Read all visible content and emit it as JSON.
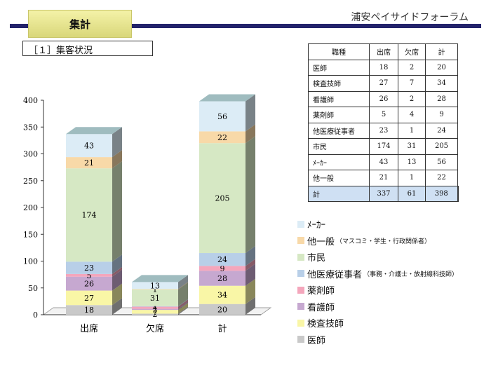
{
  "header": {
    "title": "集計",
    "brand": "浦安ペイサイドフォーラム"
  },
  "section": {
    "title": "［１］集客状況"
  },
  "table": {
    "headers": [
      "職種",
      "出席",
      "欠席",
      "計"
    ],
    "rows": [
      [
        "医師",
        "18",
        "2",
        "20"
      ],
      [
        "検査技師",
        "27",
        "7",
        "34"
      ],
      [
        "看護師",
        "26",
        "2",
        "28"
      ],
      [
        "薬剤師",
        "5",
        "4",
        "9"
      ],
      [
        "他医療従事者",
        "23",
        "1",
        "24"
      ],
      [
        "市民",
        "174",
        "31",
        "205"
      ],
      [
        "ﾒｰｶｰ",
        "43",
        "13",
        "56"
      ],
      [
        "他一般",
        "21",
        "1",
        "22"
      ],
      [
        "計",
        "337",
        "61",
        "398"
      ]
    ]
  },
  "legend": [
    {
      "label": "ﾒｰｶｰ",
      "sub": "",
      "color": "#dcecf6"
    },
    {
      "label": "他一般",
      "sub": "（マスコミ・学生・行政関係者）",
      "color": "#f8d9a8"
    },
    {
      "label": "市民",
      "sub": "",
      "color": "#d6e8c4"
    },
    {
      "label": "他医療従事者",
      "sub": "（事務・介護士・放射線科技師）",
      "color": "#b8cfe8"
    },
    {
      "label": "薬剤師",
      "sub": "",
      "color": "#f4a6bc"
    },
    {
      "label": "看護師",
      "sub": "",
      "color": "#c6a8d0"
    },
    {
      "label": "検査技師",
      "sub": "",
      "color": "#f9f6a6"
    },
    {
      "label": "医師",
      "sub": "",
      "color": "#c9c9c9"
    }
  ],
  "chart_data": {
    "type": "bar",
    "stacked": true,
    "categories": [
      "出席",
      "欠席",
      "計"
    ],
    "ylim": [
      0,
      400
    ],
    "yticks": [
      "0",
      "50",
      "100",
      "150",
      "200",
      "250",
      "300",
      "350",
      "400"
    ],
    "series": [
      {
        "name": "医師",
        "values": [
          18,
          2,
          20
        ],
        "color": "#c9c9c9"
      },
      {
        "name": "検査技師",
        "values": [
          27,
          7,
          34
        ],
        "color": "#f9f6a6"
      },
      {
        "name": "看護師",
        "values": [
          26,
          2,
          28
        ],
        "color": "#c6a8d0"
      },
      {
        "name": "薬剤師",
        "values": [
          5,
          4,
          9
        ],
        "color": "#f4a6bc"
      },
      {
        "name": "他医療従事者",
        "values": [
          23,
          1,
          24
        ],
        "color": "#b8cfe8"
      },
      {
        "name": "市民",
        "values": [
          174,
          31,
          205
        ],
        "color": "#d6e8c4"
      },
      {
        "name": "他一般",
        "values": [
          21,
          1,
          22
        ],
        "color": "#f8d9a8"
      },
      {
        "name": "ﾒｰｶｰ",
        "values": [
          43,
          13,
          56
        ],
        "color": "#dcecf6"
      }
    ]
  }
}
